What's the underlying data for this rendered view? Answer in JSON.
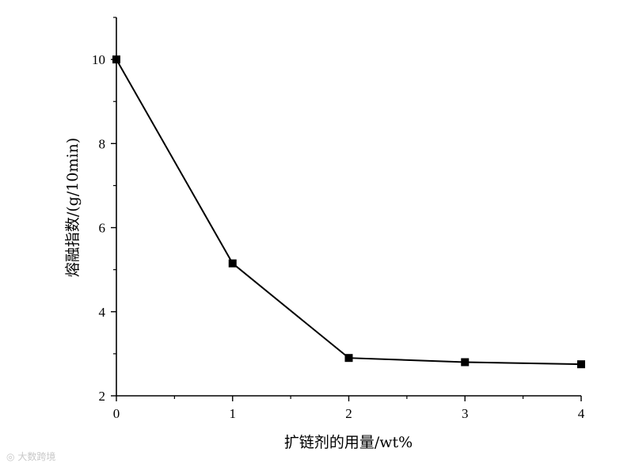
{
  "chart_data": {
    "type": "line",
    "title": "",
    "xlabel": "扩链剂的用量/wt%",
    "ylabel": "熔融指数/(g/10min)",
    "x": [
      0,
      1,
      2,
      3,
      4
    ],
    "series": [
      {
        "values": [
          10.0,
          5.15,
          2.9,
          2.8,
          2.75
        ]
      }
    ],
    "xlim": [
      0,
      4
    ],
    "ylim": [
      2,
      11
    ],
    "x_ticks": [
      "0",
      "1",
      "2",
      "3",
      "4"
    ],
    "y_ticks": [
      "2",
      "4",
      "6",
      "8",
      "10"
    ],
    "grid": false,
    "legend": "none",
    "marker": "square",
    "color": "#000000"
  },
  "watermark": {
    "text": "大数跨境"
  }
}
